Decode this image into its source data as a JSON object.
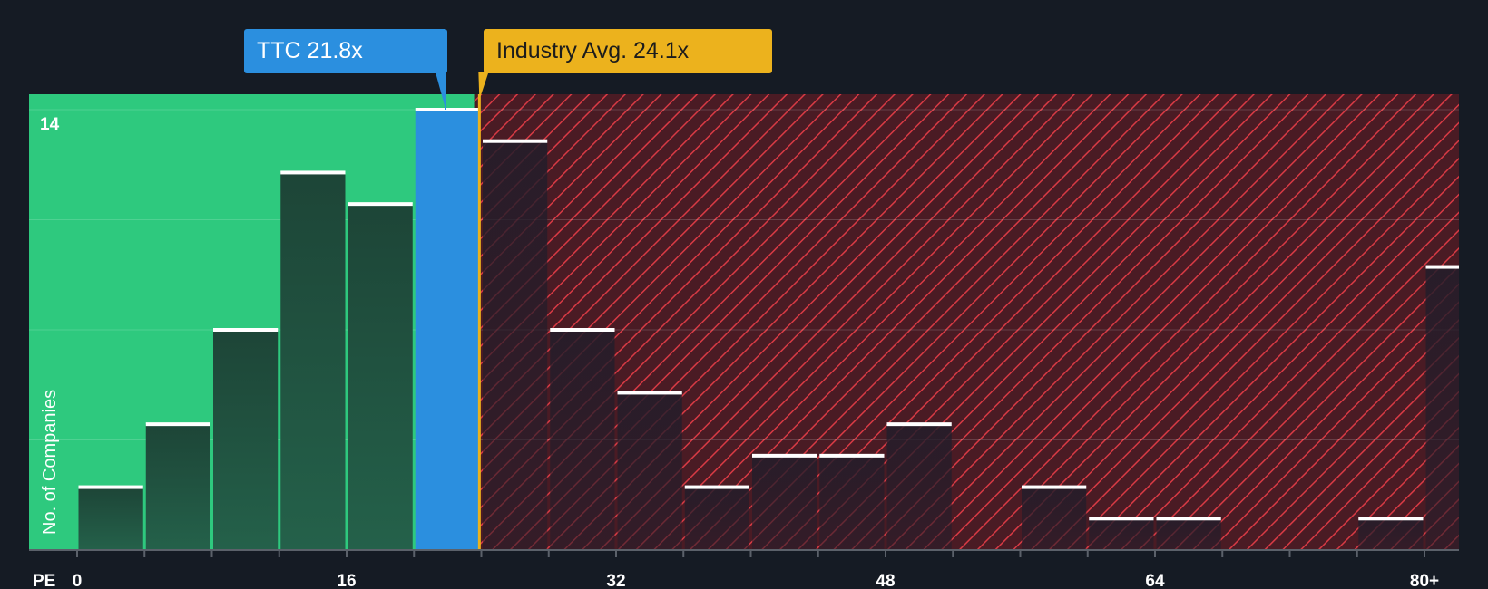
{
  "chart_data": {
    "type": "bar",
    "xlabel": "PE",
    "ylabel": "No. of Companies",
    "x_ticks": [
      "0",
      "16",
      "32",
      "48",
      "64",
      "80+"
    ],
    "x_tick_values": [
      0,
      16,
      32,
      48,
      64,
      80
    ],
    "x_range": [
      -3,
      82
    ],
    "y_tick_label": "14",
    "y_tick_value": 14,
    "ylim": [
      0,
      14.5
    ],
    "gridlines_at": [
      3.5,
      7,
      10.5,
      14
    ],
    "bin_width": 4,
    "bins": [
      {
        "x": 0,
        "value": 2
      },
      {
        "x": 4,
        "value": 4
      },
      {
        "x": 8,
        "value": 7
      },
      {
        "x": 12,
        "value": 12
      },
      {
        "x": 16,
        "value": 11
      },
      {
        "x": 20,
        "value": 14,
        "highlight": true
      },
      {
        "x": 24,
        "value": 13
      },
      {
        "x": 28,
        "value": 7
      },
      {
        "x": 32,
        "value": 5
      },
      {
        "x": 36,
        "value": 2
      },
      {
        "x": 40,
        "value": 3
      },
      {
        "x": 44,
        "value": 3
      },
      {
        "x": 48,
        "value": 4
      },
      {
        "x": 52,
        "value": 0
      },
      {
        "x": 56,
        "value": 2
      },
      {
        "x": 60,
        "value": 1
      },
      {
        "x": 64,
        "value": 1
      },
      {
        "x": 68,
        "value": 0
      },
      {
        "x": 72,
        "value": 0
      },
      {
        "x": 76,
        "value": 1
      },
      {
        "x": 80,
        "value": 9
      }
    ],
    "company": {
      "label": "TTC 21.8x",
      "pe": 21.8
    },
    "industry": {
      "label": "Industry Avg. 24.1x",
      "pe": 24.1
    }
  },
  "colors": {
    "background": "#151b24",
    "undervalued_zone": "#2ec97e",
    "overvalued_zone": "#6b1f2a",
    "hatch": "#d83a44",
    "bar_dark": "#1e4a3c",
    "bar_highlight": "#2b8fdf",
    "industry": "#ecb21d",
    "bar_cap": "#ffffff"
  }
}
